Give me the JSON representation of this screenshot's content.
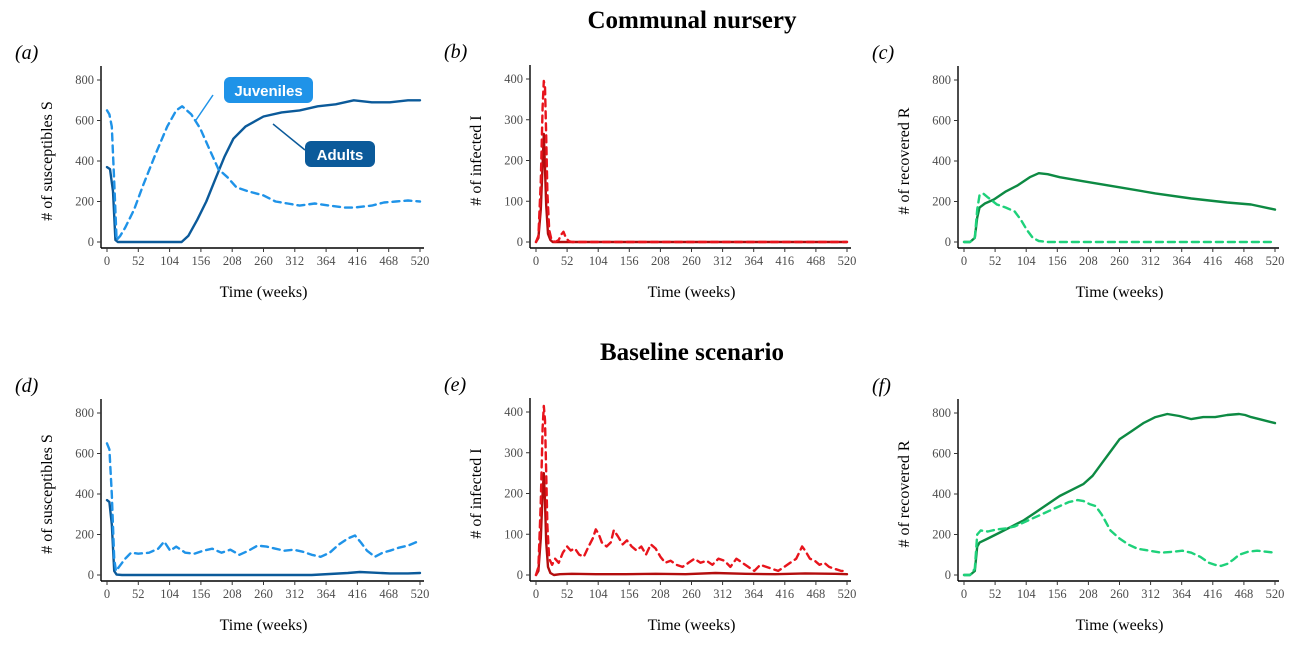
{
  "figure": {
    "titles": [
      "Communal nursery",
      "Baseline scenario"
    ],
    "callouts": {
      "juveniles": "Juveniles",
      "adults": "Adults"
    }
  },
  "colors": {
    "susceptible": "#0b5a9a",
    "susceptible_juv": "#1f93e8",
    "infected": "#b30d0d",
    "infected_juv": "#e8141c",
    "recovered": "#0d8a43",
    "recovered_juv": "#1ed17a"
  },
  "chart_data": [
    {
      "id": "a",
      "panel_label": "(a)",
      "type": "line",
      "color_key": "susceptible",
      "xlabel": "Time (weeks)",
      "ylabel": "# of susceptibles S",
      "xlim": [
        0,
        520
      ],
      "ylim": [
        0,
        800
      ],
      "xticks": [
        0,
        52,
        104,
        156,
        208,
        260,
        312,
        364,
        416,
        468,
        520
      ],
      "yticks": [
        0,
        200,
        400,
        600,
        800
      ],
      "series": [
        {
          "style": "solid",
          "x": [
            0,
            5,
            10,
            14,
            18,
            30,
            60,
            100,
            110,
            118,
            124,
            135,
            150,
            165,
            180,
            195,
            210,
            230,
            260,
            290,
            320,
            350,
            380,
            410,
            440,
            470,
            500,
            520
          ],
          "y": [
            370,
            360,
            250,
            10,
            0,
            0,
            0,
            0,
            0,
            0,
            0,
            30,
            110,
            200,
            310,
            420,
            510,
            570,
            620,
            640,
            650,
            670,
            680,
            700,
            690,
            690,
            700,
            700
          ]
        },
        {
          "style": "dashed",
          "x": [
            0,
            4,
            8,
            12,
            16,
            22,
            30,
            45,
            60,
            80,
            100,
            115,
            125,
            140,
            155,
            170,
            185,
            200,
            215,
            235,
            260,
            280,
            300,
            320,
            345,
            370,
            395,
            410,
            425,
            440,
            460,
            480,
            500,
            520
          ],
          "y": [
            650,
            630,
            570,
            300,
            10,
            30,
            70,
            160,
            280,
            430,
            570,
            650,
            670,
            630,
            560,
            460,
            360,
            320,
            270,
            250,
            230,
            200,
            190,
            180,
            190,
            180,
            170,
            170,
            175,
            180,
            195,
            200,
            205,
            200
          ]
        }
      ]
    },
    {
      "id": "b",
      "panel_label": "(b)",
      "type": "line",
      "color_key": "infected",
      "xlabel": "Time (weeks)",
      "ylabel": "# of infected I",
      "xlim": [
        0,
        520
      ],
      "ylim": [
        0,
        400
      ],
      "xticks": [
        0,
        52,
        104,
        156,
        208,
        260,
        312,
        364,
        416,
        468,
        520
      ],
      "yticks": [
        0,
        100,
        200,
        300,
        400
      ],
      "series": [
        {
          "style": "solid",
          "x": [
            0,
            4,
            8,
            11,
            13,
            15,
            17,
            20,
            24,
            28,
            35,
            520
          ],
          "y": [
            0,
            10,
            80,
            190,
            265,
            180,
            90,
            20,
            5,
            0,
            0,
            0
          ]
        },
        {
          "style": "dashed",
          "x": [
            0,
            4,
            8,
            11,
            13,
            15,
            17,
            19,
            22,
            26,
            32,
            38,
            42,
            46,
            50,
            55,
            60,
            520
          ],
          "y": [
            0,
            15,
            150,
            330,
            395,
            380,
            260,
            120,
            30,
            5,
            0,
            5,
            18,
            25,
            10,
            2,
            0,
            0
          ]
        }
      ]
    },
    {
      "id": "c",
      "panel_label": "(c)",
      "type": "line",
      "color_key": "recovered",
      "xlabel": "Time (weeks)",
      "ylabel": "# of recovered R",
      "xlim": [
        0,
        520
      ],
      "ylim": [
        0,
        800
      ],
      "xticks": [
        0,
        52,
        104,
        156,
        208,
        260,
        312,
        364,
        416,
        468,
        520
      ],
      "yticks": [
        0,
        200,
        400,
        600,
        800
      ],
      "series": [
        {
          "style": "solid",
          "x": [
            0,
            10,
            18,
            22,
            26,
            35,
            50,
            70,
            90,
            110,
            125,
            140,
            160,
            200,
            260,
            320,
            380,
            440,
            480,
            520
          ],
          "y": [
            0,
            0,
            20,
            120,
            170,
            190,
            210,
            250,
            280,
            320,
            340,
            335,
            320,
            300,
            270,
            240,
            215,
            195,
            185,
            160
          ]
        },
        {
          "style": "dashed",
          "x": [
            0,
            10,
            18,
            22,
            26,
            32,
            40,
            55,
            70,
            85,
            95,
            105,
            115,
            125,
            140,
            520
          ],
          "y": [
            0,
            0,
            20,
            160,
            230,
            240,
            220,
            185,
            170,
            150,
            110,
            60,
            20,
            5,
            0,
            0
          ]
        }
      ]
    },
    {
      "id": "d",
      "panel_label": "(d)",
      "type": "line",
      "color_key": "susceptible",
      "xlabel": "Time (weeks)",
      "ylabel": "# of susceptibles S",
      "xlim": [
        0,
        520
      ],
      "ylim": [
        0,
        800
      ],
      "xticks": [
        0,
        52,
        104,
        156,
        208,
        260,
        312,
        364,
        416,
        468,
        520
      ],
      "yticks": [
        0,
        200,
        400,
        600,
        800
      ],
      "series": [
        {
          "style": "solid",
          "x": [
            0,
            4,
            8,
            12,
            16,
            25,
            60,
            150,
            250,
            340,
            370,
            400,
            420,
            440,
            470,
            500,
            520
          ],
          "y": [
            370,
            360,
            250,
            20,
            2,
            0,
            0,
            0,
            0,
            0,
            5,
            10,
            15,
            12,
            8,
            8,
            10
          ]
        },
        {
          "style": "dashed",
          "x": [
            0,
            4,
            8,
            12,
            15,
            20,
            30,
            40,
            52,
            70,
            85,
            95,
            105,
            115,
            130,
            145,
            160,
            175,
            190,
            205,
            220,
            235,
            250,
            265,
            280,
            295,
            310,
            325,
            340,
            355,
            370,
            385,
            400,
            412,
            422,
            432,
            445,
            458,
            470,
            485,
            500,
            520
          ],
          "y": [
            650,
            620,
            400,
            80,
            20,
            40,
            80,
            110,
            105,
            110,
            130,
            165,
            120,
            140,
            110,
            105,
            120,
            130,
            110,
            125,
            100,
            120,
            145,
            140,
            130,
            120,
            125,
            115,
            100,
            90,
            110,
            150,
            180,
            195,
            160,
            120,
            90,
            110,
            120,
            135,
            145,
            170
          ]
        }
      ]
    },
    {
      "id": "e",
      "panel_label": "(e)",
      "type": "line",
      "color_key": "infected",
      "xlabel": "Time (weeks)",
      "ylabel": "# of infected I",
      "xlim": [
        0,
        520
      ],
      "ylim": [
        0,
        400
      ],
      "xticks": [
        0,
        52,
        104,
        156,
        208,
        260,
        312,
        364,
        416,
        468,
        520
      ],
      "yticks": [
        0,
        100,
        200,
        300,
        400
      ],
      "series": [
        {
          "style": "solid",
          "x": [
            0,
            4,
            8,
            11,
            13,
            15,
            17,
            20,
            24,
            30,
            40,
            60,
            100,
            150,
            200,
            250,
            300,
            350,
            400,
            450,
            500,
            520
          ],
          "y": [
            0,
            10,
            90,
            200,
            250,
            180,
            80,
            20,
            5,
            0,
            2,
            3,
            2,
            2,
            3,
            2,
            5,
            3,
            2,
            4,
            3,
            2
          ]
        },
        {
          "style": "dashed",
          "x": [
            0,
            4,
            8,
            11,
            13,
            15,
            17,
            19,
            22,
            27,
            32,
            38,
            45,
            52,
            58,
            65,
            72,
            80,
            88,
            95,
            100,
            105,
            110,
            118,
            125,
            130,
            137,
            145,
            152,
            160,
            168,
            176,
            184,
            192,
            200,
            208,
            216,
            225,
            235,
            245,
            255,
            265,
            275,
            285,
            295,
            305,
            315,
            325,
            335,
            345,
            355,
            365,
            375,
            385,
            395,
            405,
            415,
            425,
            435,
            440,
            445,
            450,
            458,
            466,
            474,
            482,
            490,
            500,
            510,
            520
          ],
          "y": [
            0,
            20,
            180,
            360,
            415,
            380,
            250,
            120,
            40,
            25,
            40,
            30,
            55,
            70,
            60,
            65,
            50,
            45,
            70,
            90,
            112,
            100,
            80,
            70,
            80,
            110,
            95,
            75,
            85,
            70,
            60,
            70,
            50,
            75,
            65,
            45,
            30,
            35,
            25,
            20,
            30,
            40,
            30,
            35,
            25,
            40,
            35,
            20,
            40,
            30,
            20,
            10,
            25,
            20,
            15,
            10,
            20,
            30,
            40,
            55,
            70,
            60,
            40,
            35,
            25,
            30,
            20,
            15,
            10,
            10
          ]
        }
      ]
    },
    {
      "id": "f",
      "panel_label": "(f)",
      "type": "line",
      "color_key": "recovered",
      "xlabel": "Time (weeks)",
      "ylabel": "# of recovered R",
      "xlim": [
        0,
        520
      ],
      "ylim": [
        0,
        800
      ],
      "xticks": [
        0,
        52,
        104,
        156,
        208,
        260,
        312,
        364,
        416,
        468,
        520
      ],
      "yticks": [
        0,
        200,
        400,
        600,
        800
      ],
      "series": [
        {
          "style": "solid",
          "x": [
            0,
            10,
            18,
            22,
            26,
            40,
            60,
            80,
            100,
            120,
            140,
            160,
            180,
            200,
            215,
            230,
            245,
            260,
            280,
            300,
            320,
            340,
            360,
            380,
            400,
            420,
            440,
            460,
            470,
            480,
            500,
            520
          ],
          "y": [
            0,
            0,
            20,
            140,
            160,
            180,
            210,
            240,
            270,
            310,
            350,
            390,
            420,
            450,
            490,
            550,
            610,
            670,
            710,
            750,
            780,
            795,
            785,
            770,
            780,
            780,
            790,
            795,
            790,
            780,
            765,
            750
          ]
        },
        {
          "style": "dashed",
          "x": [
            0,
            10,
            18,
            22,
            28,
            40,
            55,
            70,
            85,
            100,
            115,
            130,
            145,
            160,
            175,
            190,
            200,
            210,
            220,
            230,
            245,
            260,
            275,
            290,
            310,
            330,
            350,
            365,
            380,
            395,
            410,
            420,
            430,
            440,
            450,
            460,
            475,
            490,
            505,
            520
          ],
          "y": [
            0,
            0,
            30,
            200,
            220,
            215,
            225,
            230,
            240,
            260,
            280,
            300,
            320,
            340,
            360,
            370,
            365,
            350,
            340,
            300,
            220,
            180,
            150,
            130,
            120,
            110,
            115,
            120,
            110,
            90,
            60,
            50,
            45,
            55,
            75,
            100,
            115,
            120,
            115,
            110
          ]
        }
      ]
    }
  ]
}
